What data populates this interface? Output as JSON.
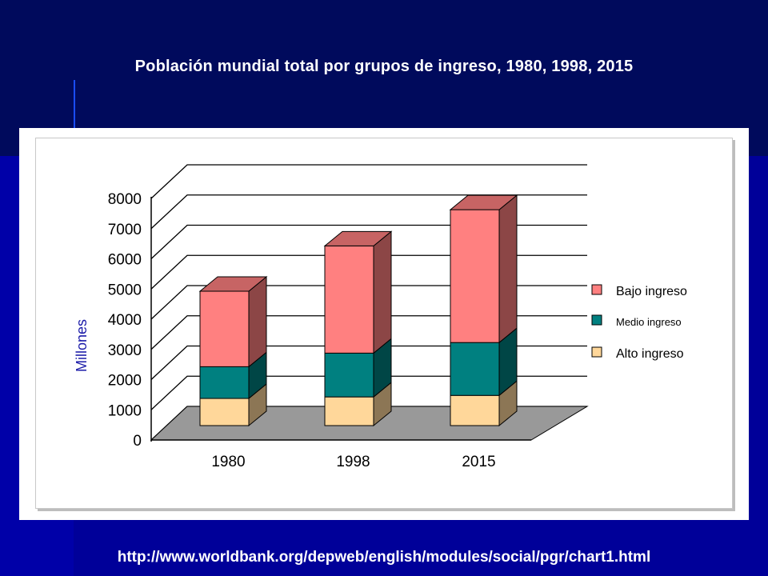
{
  "page": {
    "title": "Población mundial total por grupos de ingreso, 1980, 1998, 2015",
    "source_url": "http://www.worldbank.org/depweb/english/modules/social/pgr/chart1.html"
  },
  "chart_data": {
    "type": "bar",
    "stacked": true,
    "three_d": true,
    "title": "",
    "xlabel": "",
    "ylabel": "Millones",
    "ylim": [
      0,
      8000
    ],
    "yticks": [
      0,
      1000,
      2000,
      3000,
      4000,
      5000,
      6000,
      7000,
      8000
    ],
    "categories": [
      "1980",
      "1998",
      "2015"
    ],
    "series": [
      {
        "name": "Alto ingreso",
        "values": [
          900,
          950,
          1000
        ],
        "color": "#ffd79a"
      },
      {
        "name": "Medio ingreso",
        "values": [
          1050,
          1450,
          1750
        ],
        "color": "#008080"
      },
      {
        "name": "Bajo ingreso",
        "values": [
          2500,
          3550,
          4400
        ],
        "color": "#ff8080"
      }
    ],
    "legend_order": [
      "Bajo ingreso",
      "Medio ingreso",
      "Alto ingreso"
    ],
    "legend_position": "right",
    "grid": true,
    "colors": {
      "floor": "#999999",
      "grid": "#000000"
    }
  }
}
